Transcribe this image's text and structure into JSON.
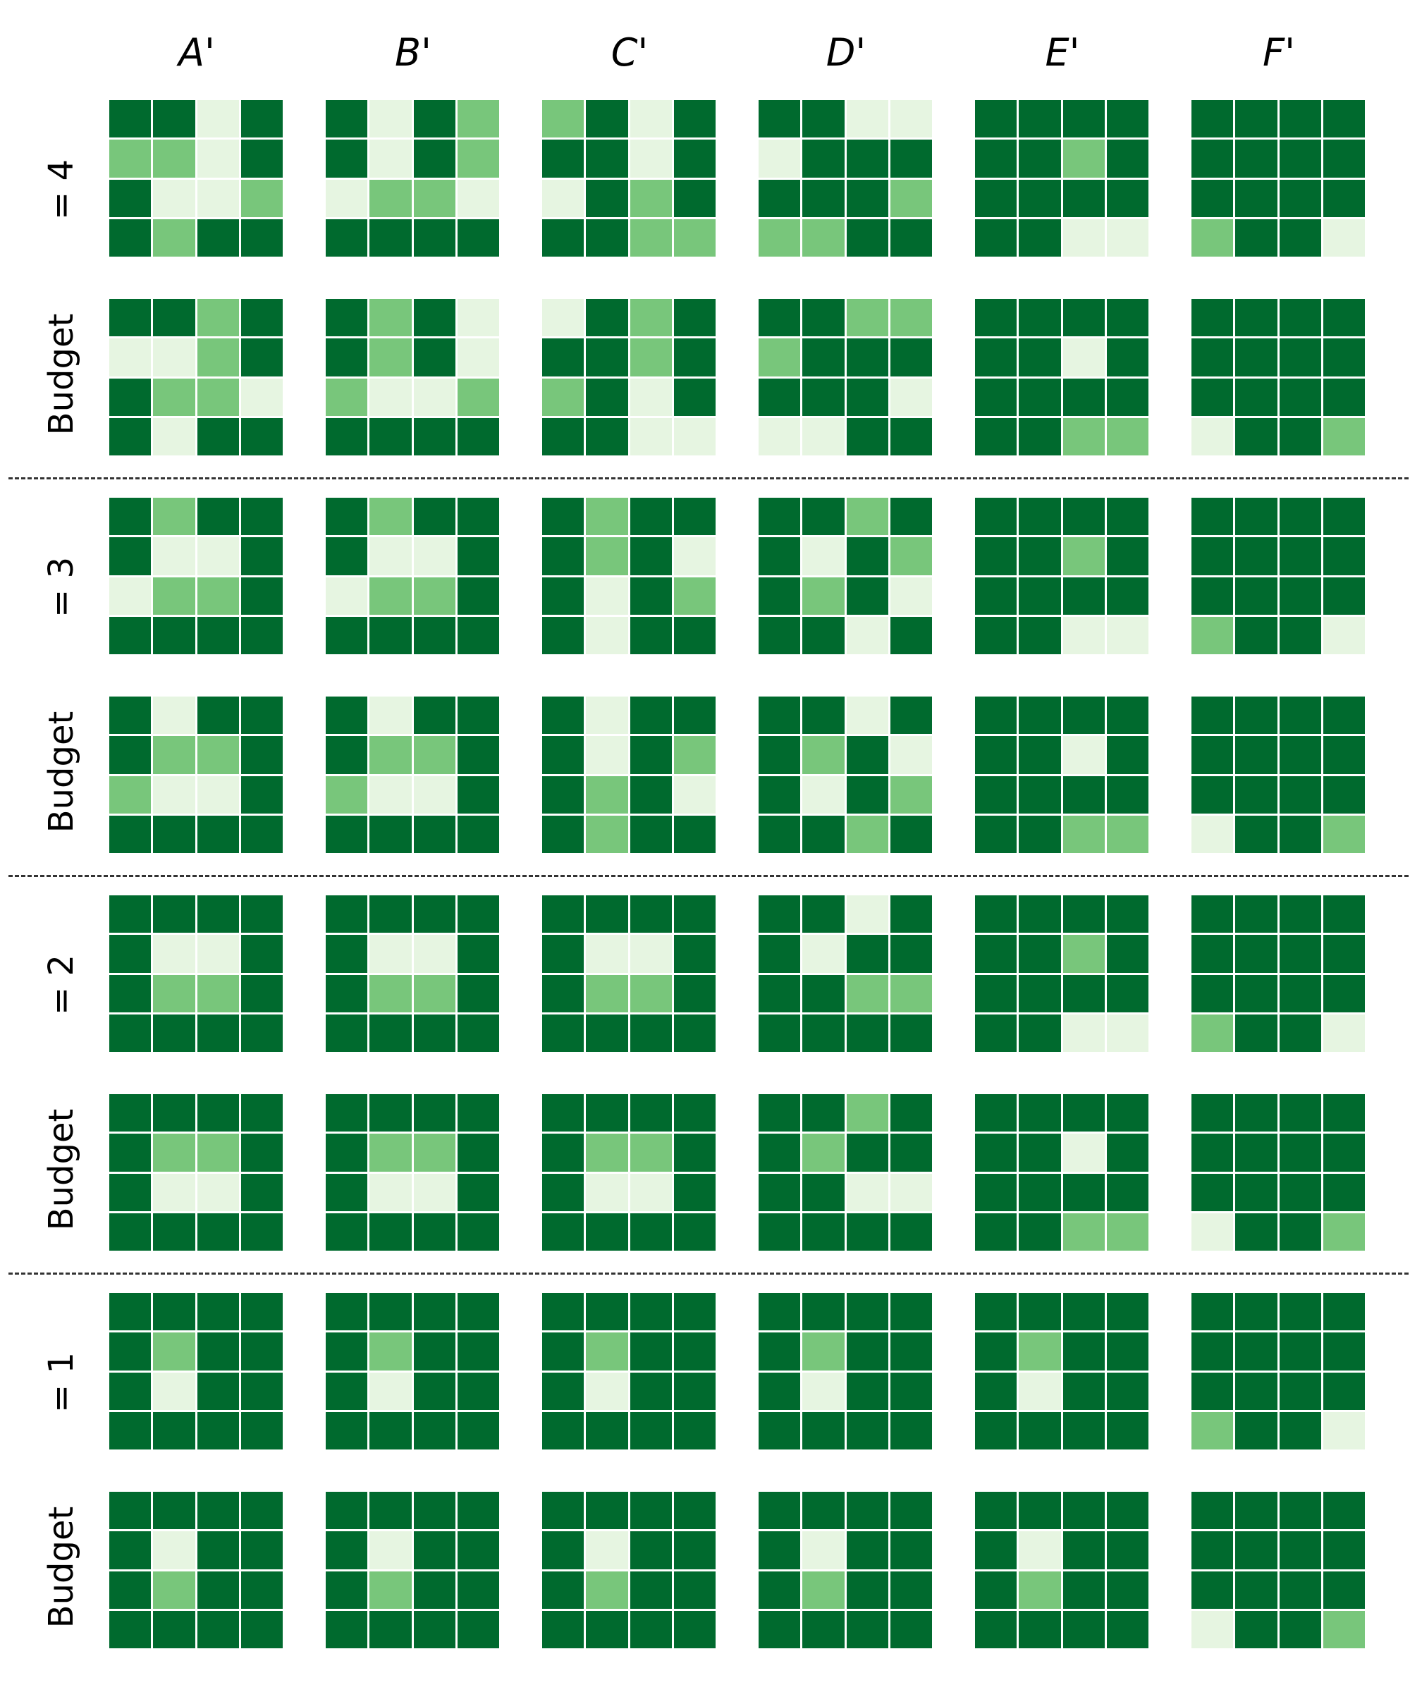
{
  "column_labels": [
    "A'",
    "B'",
    "C'",
    "D'",
    "E'",
    "F'"
  ],
  "row_labels": [
    "= 4",
    "Budget",
    "= 3",
    "Budget",
    "= 2",
    "Budget",
    "= 1",
    "Budget"
  ],
  "legend_levels": {
    "2": "dark green",
    "1": "medium green",
    "0": "pale green"
  },
  "colors": {
    "dark": "#006a2e",
    "medium": "#78c67b",
    "light": "#e6f5e1"
  },
  "grids": [
    [
      [
        [
          2,
          2,
          0,
          2
        ],
        [
          1,
          1,
          0,
          2
        ],
        [
          2,
          0,
          0,
          1
        ],
        [
          2,
          1,
          2,
          2
        ]
      ],
      [
        [
          2,
          0,
          2,
          1
        ],
        [
          2,
          0,
          2,
          1
        ],
        [
          0,
          1,
          1,
          0
        ],
        [
          2,
          2,
          2,
          2
        ]
      ],
      [
        [
          1,
          2,
          0,
          2
        ],
        [
          2,
          2,
          0,
          2
        ],
        [
          0,
          2,
          1,
          2
        ],
        [
          2,
          2,
          1,
          1
        ]
      ],
      [
        [
          2,
          2,
          0,
          0
        ],
        [
          0,
          2,
          2,
          2
        ],
        [
          2,
          2,
          2,
          1
        ],
        [
          1,
          1,
          2,
          2
        ]
      ],
      [
        [
          2,
          2,
          2,
          2
        ],
        [
          2,
          2,
          1,
          2
        ],
        [
          2,
          2,
          2,
          2
        ],
        [
          2,
          2,
          0,
          0
        ]
      ],
      [
        [
          2,
          2,
          2,
          2
        ],
        [
          2,
          2,
          2,
          2
        ],
        [
          2,
          2,
          2,
          2
        ],
        [
          1,
          2,
          2,
          0
        ]
      ]
    ],
    [
      [
        [
          2,
          2,
          1,
          2
        ],
        [
          0,
          0,
          1,
          2
        ],
        [
          2,
          1,
          1,
          0
        ],
        [
          2,
          0,
          2,
          2
        ]
      ],
      [
        [
          2,
          1,
          2,
          0
        ],
        [
          2,
          1,
          2,
          0
        ],
        [
          1,
          0,
          0,
          1
        ],
        [
          2,
          2,
          2,
          2
        ]
      ],
      [
        [
          0,
          2,
          1,
          2
        ],
        [
          2,
          2,
          1,
          2
        ],
        [
          1,
          2,
          0,
          2
        ],
        [
          2,
          2,
          0,
          0
        ]
      ],
      [
        [
          2,
          2,
          1,
          1
        ],
        [
          1,
          2,
          2,
          2
        ],
        [
          2,
          2,
          2,
          0
        ],
        [
          0,
          0,
          2,
          2
        ]
      ],
      [
        [
          2,
          2,
          2,
          2
        ],
        [
          2,
          2,
          0,
          2
        ],
        [
          2,
          2,
          2,
          2
        ],
        [
          2,
          2,
          1,
          1
        ]
      ],
      [
        [
          2,
          2,
          2,
          2
        ],
        [
          2,
          2,
          2,
          2
        ],
        [
          2,
          2,
          2,
          2
        ],
        [
          0,
          2,
          2,
          1
        ]
      ]
    ],
    [
      [
        [
          2,
          1,
          2,
          2
        ],
        [
          2,
          0,
          0,
          2
        ],
        [
          0,
          1,
          1,
          2
        ],
        [
          2,
          2,
          2,
          2
        ]
      ],
      [
        [
          2,
          1,
          2,
          2
        ],
        [
          2,
          0,
          0,
          2
        ],
        [
          0,
          1,
          1,
          2
        ],
        [
          2,
          2,
          2,
          2
        ]
      ],
      [
        [
          2,
          1,
          2,
          2
        ],
        [
          2,
          1,
          2,
          0
        ],
        [
          2,
          0,
          2,
          1
        ],
        [
          2,
          0,
          2,
          2
        ]
      ],
      [
        [
          2,
          2,
          1,
          2
        ],
        [
          2,
          0,
          2,
          1
        ],
        [
          2,
          1,
          2,
          0
        ],
        [
          2,
          2,
          0,
          2
        ]
      ],
      [
        [
          2,
          2,
          2,
          2
        ],
        [
          2,
          2,
          1,
          2
        ],
        [
          2,
          2,
          2,
          2
        ],
        [
          2,
          2,
          0,
          0
        ]
      ],
      [
        [
          2,
          2,
          2,
          2
        ],
        [
          2,
          2,
          2,
          2
        ],
        [
          2,
          2,
          2,
          2
        ],
        [
          1,
          2,
          2,
          0
        ]
      ]
    ],
    [
      [
        [
          2,
          0,
          2,
          2
        ],
        [
          2,
          1,
          1,
          2
        ],
        [
          1,
          0,
          0,
          2
        ],
        [
          2,
          2,
          2,
          2
        ]
      ],
      [
        [
          2,
          0,
          2,
          2
        ],
        [
          2,
          1,
          1,
          2
        ],
        [
          1,
          0,
          0,
          2
        ],
        [
          2,
          2,
          2,
          2
        ]
      ],
      [
        [
          2,
          0,
          2,
          2
        ],
        [
          2,
          0,
          2,
          1
        ],
        [
          2,
          1,
          2,
          0
        ],
        [
          2,
          1,
          2,
          2
        ]
      ],
      [
        [
          2,
          2,
          0,
          2
        ],
        [
          2,
          1,
          2,
          0
        ],
        [
          2,
          0,
          2,
          1
        ],
        [
          2,
          2,
          1,
          2
        ]
      ],
      [
        [
          2,
          2,
          2,
          2
        ],
        [
          2,
          2,
          0,
          2
        ],
        [
          2,
          2,
          2,
          2
        ],
        [
          2,
          2,
          1,
          1
        ]
      ],
      [
        [
          2,
          2,
          2,
          2
        ],
        [
          2,
          2,
          2,
          2
        ],
        [
          2,
          2,
          2,
          2
        ],
        [
          0,
          2,
          2,
          1
        ]
      ]
    ],
    [
      [
        [
          2,
          2,
          2,
          2
        ],
        [
          2,
          0,
          0,
          2
        ],
        [
          2,
          1,
          1,
          2
        ],
        [
          2,
          2,
          2,
          2
        ]
      ],
      [
        [
          2,
          2,
          2,
          2
        ],
        [
          2,
          0,
          0,
          2
        ],
        [
          2,
          1,
          1,
          2
        ],
        [
          2,
          2,
          2,
          2
        ]
      ],
      [
        [
          2,
          2,
          2,
          2
        ],
        [
          2,
          0,
          0,
          2
        ],
        [
          2,
          1,
          1,
          2
        ],
        [
          2,
          2,
          2,
          2
        ]
      ],
      [
        [
          2,
          2,
          0,
          2
        ],
        [
          2,
          0,
          2,
          2
        ],
        [
          2,
          2,
          1,
          1
        ],
        [
          2,
          2,
          2,
          2
        ]
      ],
      [
        [
          2,
          2,
          2,
          2
        ],
        [
          2,
          2,
          1,
          2
        ],
        [
          2,
          2,
          2,
          2
        ],
        [
          2,
          2,
          0,
          0
        ]
      ],
      [
        [
          2,
          2,
          2,
          2
        ],
        [
          2,
          2,
          2,
          2
        ],
        [
          2,
          2,
          2,
          2
        ],
        [
          1,
          2,
          2,
          0
        ]
      ]
    ],
    [
      [
        [
          2,
          2,
          2,
          2
        ],
        [
          2,
          1,
          1,
          2
        ],
        [
          2,
          0,
          0,
          2
        ],
        [
          2,
          2,
          2,
          2
        ]
      ],
      [
        [
          2,
          2,
          2,
          2
        ],
        [
          2,
          1,
          1,
          2
        ],
        [
          2,
          0,
          0,
          2
        ],
        [
          2,
          2,
          2,
          2
        ]
      ],
      [
        [
          2,
          2,
          2,
          2
        ],
        [
          2,
          1,
          1,
          2
        ],
        [
          2,
          0,
          0,
          2
        ],
        [
          2,
          2,
          2,
          2
        ]
      ],
      [
        [
          2,
          2,
          1,
          2
        ],
        [
          2,
          1,
          2,
          2
        ],
        [
          2,
          2,
          0,
          0
        ],
        [
          2,
          2,
          2,
          2
        ]
      ],
      [
        [
          2,
          2,
          2,
          2
        ],
        [
          2,
          2,
          0,
          2
        ],
        [
          2,
          2,
          2,
          2
        ],
        [
          2,
          2,
          1,
          1
        ]
      ],
      [
        [
          2,
          2,
          2,
          2
        ],
        [
          2,
          2,
          2,
          2
        ],
        [
          2,
          2,
          2,
          2
        ],
        [
          0,
          2,
          2,
          1
        ]
      ]
    ],
    [
      [
        [
          2,
          2,
          2,
          2
        ],
        [
          2,
          1,
          2,
          2
        ],
        [
          2,
          0,
          2,
          2
        ],
        [
          2,
          2,
          2,
          2
        ]
      ],
      [
        [
          2,
          2,
          2,
          2
        ],
        [
          2,
          1,
          2,
          2
        ],
        [
          2,
          0,
          2,
          2
        ],
        [
          2,
          2,
          2,
          2
        ]
      ],
      [
        [
          2,
          2,
          2,
          2
        ],
        [
          2,
          1,
          2,
          2
        ],
        [
          2,
          0,
          2,
          2
        ],
        [
          2,
          2,
          2,
          2
        ]
      ],
      [
        [
          2,
          2,
          2,
          2
        ],
        [
          2,
          1,
          2,
          2
        ],
        [
          2,
          0,
          2,
          2
        ],
        [
          2,
          2,
          2,
          2
        ]
      ],
      [
        [
          2,
          2,
          2,
          2
        ],
        [
          2,
          1,
          2,
          2
        ],
        [
          2,
          0,
          2,
          2
        ],
        [
          2,
          2,
          2,
          2
        ]
      ],
      [
        [
          2,
          2,
          2,
          2
        ],
        [
          2,
          2,
          2,
          2
        ],
        [
          2,
          2,
          2,
          2
        ],
        [
          1,
          2,
          2,
          0
        ]
      ]
    ],
    [
      [
        [
          2,
          2,
          2,
          2
        ],
        [
          2,
          0,
          2,
          2
        ],
        [
          2,
          1,
          2,
          2
        ],
        [
          2,
          2,
          2,
          2
        ]
      ],
      [
        [
          2,
          2,
          2,
          2
        ],
        [
          2,
          0,
          2,
          2
        ],
        [
          2,
          1,
          2,
          2
        ],
        [
          2,
          2,
          2,
          2
        ]
      ],
      [
        [
          2,
          2,
          2,
          2
        ],
        [
          2,
          0,
          2,
          2
        ],
        [
          2,
          1,
          2,
          2
        ],
        [
          2,
          2,
          2,
          2
        ]
      ],
      [
        [
          2,
          2,
          2,
          2
        ],
        [
          2,
          0,
          2,
          2
        ],
        [
          2,
          1,
          2,
          2
        ],
        [
          2,
          2,
          2,
          2
        ]
      ],
      [
        [
          2,
          2,
          2,
          2
        ],
        [
          2,
          0,
          2,
          2
        ],
        [
          2,
          1,
          2,
          2
        ],
        [
          2,
          2,
          2,
          2
        ]
      ],
      [
        [
          2,
          2,
          2,
          2
        ],
        [
          2,
          2,
          2,
          2
        ],
        [
          2,
          2,
          2,
          2
        ],
        [
          0,
          2,
          2,
          1
        ]
      ]
    ]
  ]
}
